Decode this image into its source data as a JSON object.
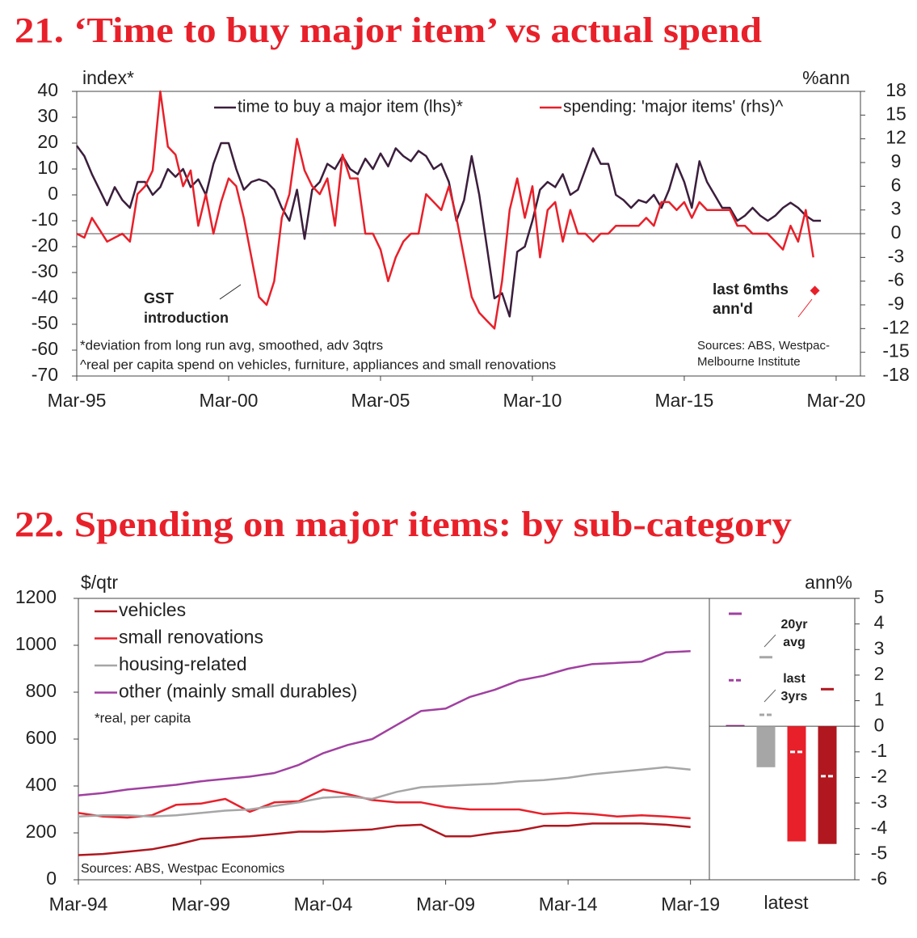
{
  "chart_data": [
    {
      "type": "line",
      "title": "21. ‘Time to buy major item’ vs actual spend",
      "y_axis_label": "index*",
      "y2_axis_label": "%ann",
      "xlim": [
        1995,
        2020.8
      ],
      "xticks": [
        {
          "value": 1995,
          "label": "Mar-95"
        },
        {
          "value": 2000,
          "label": "Mar-00"
        },
        {
          "value": 2005,
          "label": "Mar-05"
        },
        {
          "value": 2010,
          "label": "Mar-10"
        },
        {
          "value": 2015,
          "label": "Mar-15"
        },
        {
          "value": 2020,
          "label": "Mar-20"
        }
      ],
      "ylim": [
        -70,
        40
      ],
      "yticks": [
        -70,
        -60,
        -50,
        -40,
        -30,
        -20,
        -10,
        0,
        10,
        20,
        30,
        40
      ],
      "y2lim": [
        -18,
        18
      ],
      "y2ticks": [
        -18,
        -15,
        -12,
        -9,
        -6,
        -3,
        0,
        3,
        6,
        9,
        12,
        15,
        18
      ],
      "zero_line": true,
      "legend": "top",
      "series": [
        {
          "name": "time to buy a major item (lhs)*",
          "color": "#3b1e3c",
          "x": [
            1995,
            1995.25,
            1995.5,
            1995.75,
            1996,
            1996.25,
            1996.5,
            1996.75,
            1997,
            1997.25,
            1997.5,
            1997.75,
            1998,
            1998.25,
            1998.5,
            1998.75,
            1999,
            1999.25,
            1999.5,
            1999.75,
            2000,
            2000.25,
            2000.5,
            2000.75,
            2001,
            2001.25,
            2001.5,
            2001.75,
            2002,
            2002.25,
            2002.5,
            2002.75,
            2003,
            2003.25,
            2003.5,
            2003.75,
            2004,
            2004.25,
            2004.5,
            2004.75,
            2005,
            2005.25,
            2005.5,
            2005.75,
            2006,
            2006.25,
            2006.5,
            2006.75,
            2007,
            2007.25,
            2007.5,
            2007.75,
            2008,
            2008.25,
            2008.5,
            2008.75,
            2009,
            2009.25,
            2009.5,
            2009.75,
            2010,
            2010.25,
            2010.5,
            2010.75,
            2011,
            2011.25,
            2011.5,
            2011.75,
            2012,
            2012.25,
            2012.5,
            2012.75,
            2013,
            2013.25,
            2013.5,
            2013.75,
            2014,
            2014.25,
            2014.5,
            2014.75,
            2015,
            2015.25,
            2015.5,
            2015.75,
            2016,
            2016.25,
            2016.5,
            2016.75,
            2017,
            2017.25,
            2017.5,
            2017.75,
            2018,
            2018.25,
            2018.5,
            2018.75,
            2019,
            2019.25,
            2019.5
          ],
          "values": [
            19,
            15,
            8,
            2,
            -4,
            3,
            -2,
            -5,
            5,
            5,
            0,
            3,
            10,
            7,
            10,
            3,
            6,
            0,
            12,
            20,
            20,
            10,
            2,
            5,
            6,
            5,
            2,
            -5,
            -10,
            2,
            -17,
            2,
            5,
            12,
            10,
            15,
            10,
            8,
            14,
            10,
            16,
            11,
            18,
            15,
            13,
            17,
            15,
            10,
            12,
            5,
            -10,
            -2,
            15,
            0,
            -20,
            -40,
            -38,
            -47,
            -22,
            -20,
            -10,
            2,
            5,
            3,
            8,
            0,
            2,
            10,
            18,
            12,
            12,
            0,
            -2,
            -5,
            -2,
            -3,
            0,
            -5,
            2,
            12,
            5,
            -5,
            13,
            5,
            0,
            -5,
            -5,
            -10,
            -8,
            -5,
            -8,
            -10,
            -8,
            -5,
            -3,
            -5,
            -8,
            -10,
            -10
          ]
        },
        {
          "name": "spending: 'major items' (rhs)^",
          "color": "#e8202a",
          "axis": "y2",
          "x": [
            1995,
            1995.25,
            1995.5,
            1995.75,
            1996,
            1996.25,
            1996.5,
            1996.75,
            1997,
            1997.25,
            1997.5,
            1997.75,
            1998,
            1998.25,
            1998.5,
            1998.75,
            1999,
            1999.25,
            1999.5,
            1999.75,
            2000,
            2000.25,
            2000.5,
            2000.75,
            2001,
            2001.25,
            2001.5,
            2001.75,
            2002,
            2002.25,
            2002.5,
            2002.75,
            2003,
            2003.25,
            2003.5,
            2003.75,
            2004,
            2004.25,
            2004.5,
            2004.75,
            2005,
            2005.25,
            2005.5,
            2005.75,
            2006,
            2006.25,
            2006.5,
            2006.75,
            2007,
            2007.25,
            2007.5,
            2007.75,
            2008,
            2008.25,
            2008.5,
            2008.75,
            2009,
            2009.25,
            2009.5,
            2009.75,
            2010,
            2010.25,
            2010.5,
            2010.75,
            2011,
            2011.25,
            2011.5,
            2011.75,
            2012,
            2012.25,
            2012.5,
            2012.75,
            2013,
            2013.25,
            2013.5,
            2013.75,
            2014,
            2014.25,
            2014.5,
            2014.75,
            2015,
            2015.25,
            2015.5,
            2015.75,
            2016,
            2016.25,
            2016.5,
            2016.75,
            2017,
            2017.25,
            2017.5,
            2017.75,
            2018,
            2018.25,
            2018.5,
            2018.75,
            2019,
            2019.25
          ],
          "values": [
            0,
            -0.5,
            2,
            0.5,
            -1,
            -0.5,
            0,
            -1,
            5,
            6,
            8,
            18,
            11,
            10,
            6,
            8,
            1,
            5,
            0,
            4,
            7,
            6,
            2,
            -3,
            -8,
            -9,
            -6,
            2,
            5,
            12,
            8,
            6,
            5,
            7,
            1,
            10,
            7,
            7,
            0,
            0,
            -2,
            -6,
            -3,
            -1,
            0,
            0,
            5,
            4,
            3,
            6,
            2,
            -3,
            -8,
            -10,
            -11,
            -12,
            -6,
            3,
            7,
            2,
            6,
            -3,
            3,
            4,
            -1,
            3,
            0,
            0,
            -1,
            0,
            0,
            1,
            1,
            1,
            1,
            2,
            1,
            4,
            4,
            3,
            4,
            2,
            4,
            3,
            3,
            3,
            3,
            1,
            1,
            0,
            0,
            0,
            -1,
            -2,
            1,
            -1,
            3,
            -3
          ]
        }
      ],
      "highlight_point": {
        "x": 2019.3,
        "value": -7.2,
        "axis": "y2",
        "color": "#e8202a"
      },
      "annotations": [
        {
          "lines": [
            "GST",
            "introduction"
          ],
          "color": "#222222"
        },
        {
          "lines": [
            "last 6mths",
            "ann'd"
          ],
          "color": "#e8202a"
        }
      ],
      "notes": [
        "*deviation from long run avg, smoothed, adv 3qtrs",
        "^real per capita spend on vehicles, furniture, appliances and small renovations"
      ],
      "sources": [
        "Sources: ABS, Westpac-",
        "Melbourne Institute"
      ]
    },
    {
      "type": "line",
      "title": "22. Spending on major items: by sub-category",
      "y_axis_label": "$/qtr",
      "xlim": [
        1994,
        2019.77
      ],
      "xticks": [
        {
          "value": 1994,
          "label": "Mar-94"
        },
        {
          "value": 1999,
          "label": "Mar-99"
        },
        {
          "value": 2004,
          "label": "Mar-04"
        },
        {
          "value": 2009,
          "label": "Mar-09"
        },
        {
          "value": 2014,
          "label": "Mar-14"
        },
        {
          "value": 2019,
          "label": "Mar-19"
        }
      ],
      "ylim": [
        0,
        1200
      ],
      "yticks": [
        0,
        200,
        400,
        600,
        800,
        1000,
        1200
      ],
      "legend": "top-left",
      "note": "*real, per capita",
      "source": "Sources: ABS, Westpac Economics",
      "x": [
        1994,
        1995,
        1996,
        1997,
        1998,
        1999,
        2000,
        2001,
        2002,
        2003,
        2004,
        2005,
        2006,
        2007,
        2008,
        2009,
        2010,
        2011,
        2012,
        2013,
        2014,
        2015,
        2016,
        2017,
        2018,
        2019
      ],
      "series": [
        {
          "name": "vehicles",
          "color": "#b0171f",
          "values": [
            105,
            110,
            120,
            130,
            150,
            175,
            180,
            185,
            195,
            205,
            205,
            210,
            215,
            230,
            235,
            185,
            185,
            200,
            210,
            230,
            230,
            240,
            240,
            240,
            235,
            225
          ]
        },
        {
          "name": "small renovations",
          "color": "#e8202a",
          "values": [
            285,
            270,
            265,
            275,
            320,
            325,
            345,
            290,
            330,
            335,
            385,
            365,
            340,
            330,
            330,
            310,
            300,
            300,
            300,
            280,
            285,
            280,
            270,
            275,
            270,
            262
          ]
        },
        {
          "name": "housing-related",
          "color": "#a6a6a6",
          "values": [
            270,
            275,
            275,
            270,
            275,
            285,
            295,
            300,
            315,
            330,
            350,
            355,
            345,
            375,
            395,
            400,
            405,
            410,
            420,
            425,
            435,
            450,
            460,
            470,
            480,
            470
          ]
        },
        {
          "name": "other (mainly small durables)",
          "color": "#a040a0",
          "values": [
            360,
            370,
            385,
            395,
            405,
            420,
            430,
            440,
            455,
            490,
            540,
            575,
            600,
            660,
            720,
            730,
            780,
            810,
            850,
            870,
            900,
            920,
            925,
            930,
            970,
            975
          ]
        }
      ]
    },
    {
      "type": "bar",
      "y2_axis_label": "ann%",
      "x_label": "latest",
      "categories": [
        null,
        null,
        null,
        null
      ],
      "values": [
        0.05,
        -1.6,
        -4.5,
        -4.6
      ],
      "colors": [
        "#7b2d73",
        "#a6a6a6",
        "#e8202a",
        "#b0171f"
      ],
      "y2lim": [
        -6,
        5
      ],
      "y2ticks": [
        -6,
        -5,
        -4,
        -3,
        -2,
        -1,
        0,
        1,
        2,
        3,
        4,
        5
      ],
      "markers": [
        {
          "name_lines": [
            "20yr",
            "avg"
          ],
          "style": "solid",
          "colors": [
            "#a040a0",
            "#a6a6a6",
            "#e8202a",
            "#b0171f"
          ],
          "values": [
            4.4,
            2.7,
            null,
            1.45
          ]
        },
        {
          "name_lines": [
            "last",
            "3yrs"
          ],
          "style": "dashed",
          "colors": [
            "#a040a0",
            "#a6a6a6",
            "#ffffff",
            "#ffffff"
          ],
          "values": [
            1.8,
            0.45,
            -1.0,
            -1.95
          ]
        }
      ]
    }
  ]
}
